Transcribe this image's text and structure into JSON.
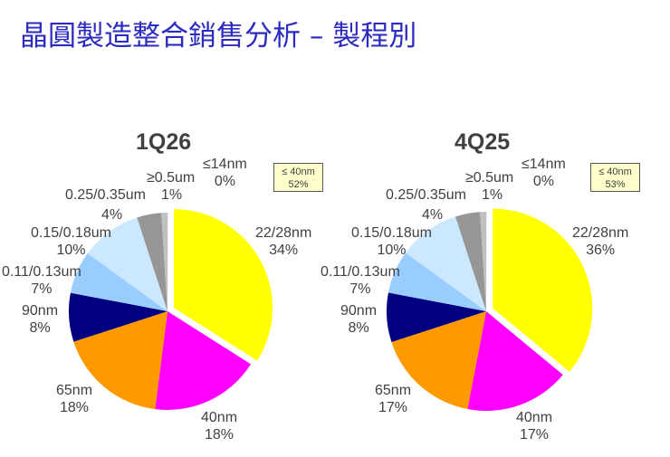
{
  "page": {
    "title": "晶圓製造整合銷售分析 – 製程別"
  },
  "chart_data": [
    {
      "type": "pie",
      "title": "1Q26",
      "categories": [
        "22/28nm",
        "40nm",
        "65nm",
        "90nm",
        "0.11/0.13um",
        "0.15/0.18um",
        "0.25/0.35um",
        "≥0.5um",
        "≤14nm"
      ],
      "values": [
        34,
        18,
        18,
        8,
        7,
        10,
        4,
        1,
        0
      ],
      "labels": [
        "34%",
        "18%",
        "18%",
        "8%",
        "7%",
        "10%",
        "4%",
        "1%",
        "0%"
      ],
      "colors": [
        "#ffff00",
        "#ff00ff",
        "#ff9900",
        "#000080",
        "#99ccff",
        "#cce8ff",
        "#969696",
        "#c0c0c0",
        "#e0e0e0"
      ],
      "exploded": "22/28nm",
      "callout": {
        "label": "≤ 40nm",
        "value": "52%"
      }
    },
    {
      "type": "pie",
      "title": "4Q25",
      "categories": [
        "22/28nm",
        "40nm",
        "65nm",
        "90nm",
        "0.11/0.13um",
        "0.15/0.18um",
        "0.25/0.35um",
        "≥0.5um",
        "≤14nm"
      ],
      "values": [
        36,
        17,
        17,
        8,
        7,
        10,
        4,
        1,
        0
      ],
      "labels": [
        "36%",
        "17%",
        "17%",
        "8%",
        "7%",
        "10%",
        "4%",
        "1%",
        "0%"
      ],
      "colors": [
        "#ffff00",
        "#ff00ff",
        "#ff9900",
        "#000080",
        "#99ccff",
        "#cce8ff",
        "#969696",
        "#c0c0c0",
        "#e0e0e0"
      ],
      "exploded": "22/28nm",
      "callout": {
        "label": "≤ 40nm",
        "value": "53%"
      }
    }
  ]
}
